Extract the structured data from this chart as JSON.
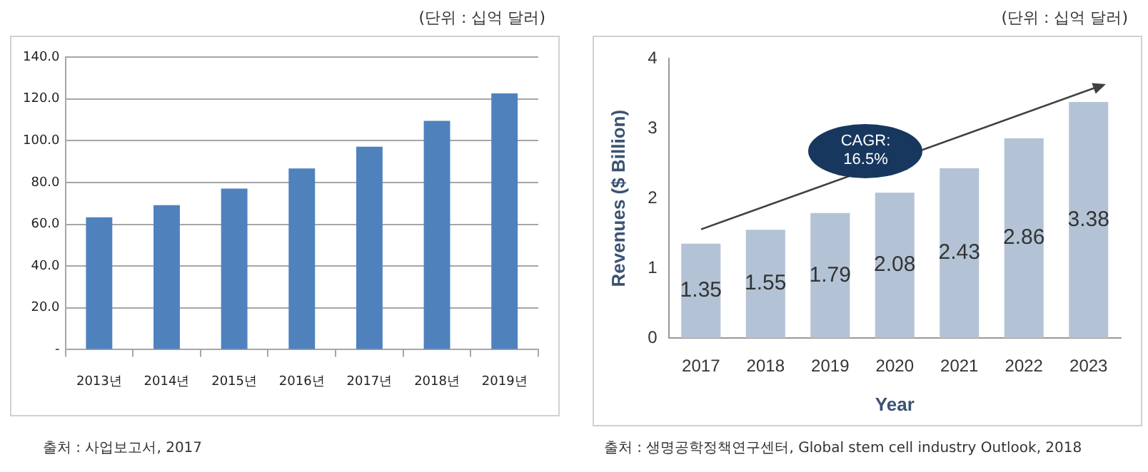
{
  "chart_data": [
    {
      "type": "bar",
      "subtitle": "(단위 : 십억 달러)",
      "categories": [
        "2013년",
        "2014년",
        "2015년",
        "2016년",
        "2017년",
        "2018년",
        "2019년"
      ],
      "values": [
        63.3,
        69.1,
        77.1,
        86.7,
        97.1,
        109.5,
        122.6
      ],
      "color": "#4f81bd",
      "ylim": [
        0,
        140
      ],
      "yticks": [
        {
          "value": 0,
          "label": "-"
        },
        {
          "value": 20,
          "label": "20.0"
        },
        {
          "value": 40,
          "label": "40.0"
        },
        {
          "value": 60,
          "label": "60.0"
        },
        {
          "value": 80,
          "label": "80.0"
        },
        {
          "value": 100,
          "label": "100.0"
        },
        {
          "value": 120,
          "label": "120.0"
        },
        {
          "value": 140,
          "label": "140.0"
        }
      ],
      "grid": "y",
      "legend": false,
      "annotations": [
        "출처 : 사업보고서, 2017"
      ]
    },
    {
      "type": "bar",
      "subtitle": "(단위 : 십억 달러)",
      "xlabel": "Year",
      "ylabel": "Revenues ($ Billion)",
      "categories": [
        "2017",
        "2018",
        "2019",
        "2020",
        "2021",
        "2022",
        "2023"
      ],
      "values": [
        1.35,
        1.55,
        1.79,
        2.08,
        2.43,
        2.86,
        3.38
      ],
      "color": "#b3c3d5",
      "ylim": [
        0,
        4
      ],
      "yticks": [
        0,
        1,
        2,
        3,
        4
      ],
      "grid": false,
      "legend": false,
      "data_labels": true,
      "annotations": [
        "CAGR: 16.5%",
        "출처 : 생명공학정책연구센터, Global stem cell industry Outlook, 2018"
      ]
    }
  ]
}
